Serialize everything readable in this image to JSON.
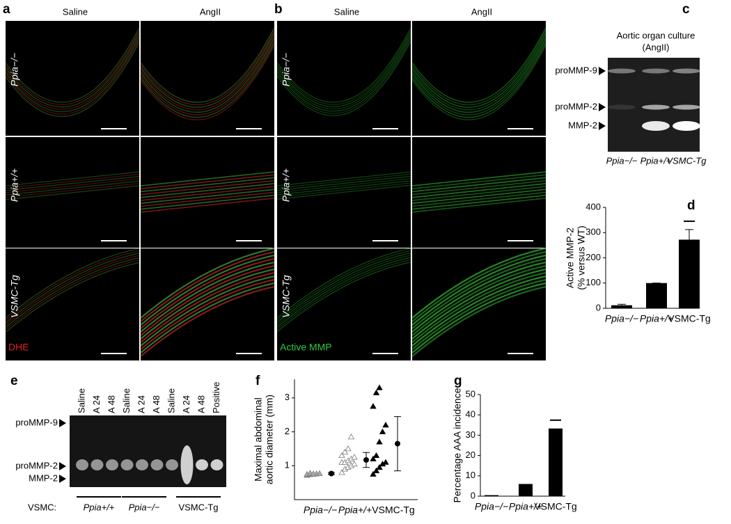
{
  "panels": {
    "a": {
      "label": "a",
      "columns": [
        "Saline",
        "AngII"
      ],
      "rows": [
        "Ppia−/−",
        "Ppia+/+",
        "VSMC-Tg"
      ],
      "stain": "DHE"
    },
    "b": {
      "label": "b",
      "columns": [
        "Saline",
        "AngII"
      ],
      "rows": [
        "Ppia−/−",
        "Ppia+/+",
        "VSMC-Tg"
      ],
      "stain": "Active MMP"
    },
    "c": {
      "label": "c",
      "title": [
        "Aortic organ culture",
        "(AngII)"
      ],
      "bands": [
        "proMMP-9",
        "proMMP-2",
        "MMP-2"
      ],
      "lanes": [
        "Ppia−/−",
        "Ppia+/+",
        "VSMC-Tg"
      ]
    },
    "e": {
      "label": "e",
      "lanes": [
        "Saline",
        "A 24",
        "A 48",
        "Saline",
        "A 24",
        "A 48",
        "Saline",
        "A 24",
        "A 48",
        "Positive"
      ],
      "bands": [
        "proMMP-9",
        "proMMP-2",
        "MMP-2"
      ],
      "group_title": "VSMC:",
      "groups": [
        "Ppia+/+",
        "Ppia−/−",
        "VSMC-Tg"
      ]
    }
  },
  "chart_data": [
    {
      "type": "bar",
      "label": "d",
      "ylabel": [
        "Active MMP-2",
        "(% versus WT)"
      ],
      "categories": [
        "Ppia−/−",
        "Ppia+/+",
        "VSMC-Tg"
      ],
      "values": [
        12,
        100,
        272
      ],
      "errors": [
        4,
        0,
        40
      ],
      "ylim": [
        0,
        400
      ],
      "yticks": [
        0,
        100,
        200,
        300,
        400
      ],
      "color": "#000000"
    },
    {
      "type": "scatter",
      "label": "f",
      "ylabel": [
        "Maximal abdominal",
        "aortic diameter (mm)"
      ],
      "categories": [
        "Ppia−/−",
        "Ppia+/+",
        "VSMC-Tg"
      ],
      "points": [
        [
          0.72,
          0.74,
          0.75,
          0.76,
          0.77,
          0.75,
          0.78,
          0.76
        ],
        [
          0.8,
          0.9,
          0.95,
          1.0,
          1.05,
          1.1,
          1.1,
          1.15,
          1.2,
          1.25,
          1.3,
          1.4,
          1.5,
          1.85
        ],
        [
          0.75,
          0.85,
          0.95,
          1.05,
          1.1,
          1.2,
          1.3,
          1.7,
          2.0,
          2.2,
          2.75,
          3.15,
          3.3
        ]
      ],
      "means": [
        0.77,
        1.17,
        1.65
      ],
      "errors": [
        0.03,
        0.22,
        0.8
      ],
      "colors": [
        "#aaaaaa",
        "#ffffff",
        "#000000"
      ],
      "ylim": [
        0,
        3.55
      ],
      "yticks": [
        1,
        2,
        3
      ]
    },
    {
      "type": "bar",
      "label": "g",
      "ylabel": [
        "Percentage AAA incidence"
      ],
      "categories": [
        "Ppia−/−",
        "Ppia+/+",
        "VSMC-Tg"
      ],
      "values": [
        0.5,
        6,
        33.3
      ],
      "ylim": [
        0,
        50
      ],
      "yticks": [
        0,
        10,
        20,
        30,
        40,
        50
      ],
      "color": "#000000"
    }
  ]
}
